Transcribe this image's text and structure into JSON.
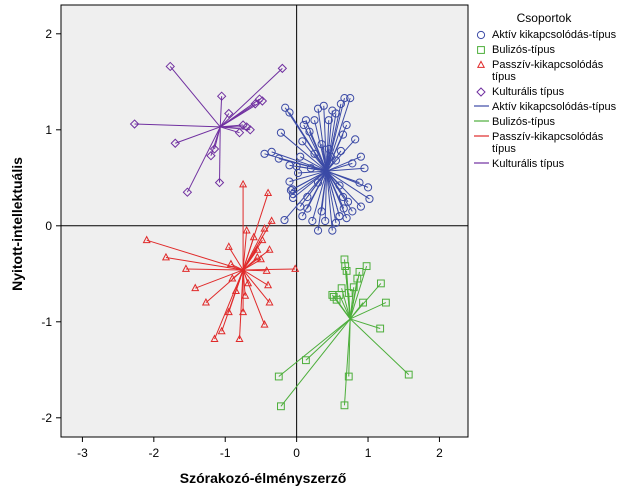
{
  "chart_data": {
    "type": "scatter",
    "xlabel": "Szórakozó-élményszerző",
    "ylabel": "Nyitott-intellektuális",
    "xlim": [
      -3.3,
      2.4
    ],
    "ylim": [
      -2.2,
      2.3
    ],
    "xticks": [
      -3,
      -2,
      -1,
      0,
      1,
      2
    ],
    "yticks": [
      -2,
      -1,
      0,
      1,
      2
    ],
    "reference_lines": {
      "x": 0,
      "y": 0
    },
    "legend": {
      "title": "Csoportok",
      "placement": "right",
      "marker_entries": [
        {
          "label": "Aktív kikapcsolódás-típus",
          "series": 0
        },
        {
          "label": "Bulizós-típus",
          "series": 1
        },
        {
          "label": "Passzív-kikapcsolódás típus",
          "series": 2
        },
        {
          "label": "Kulturális típus",
          "series": 3
        }
      ],
      "line_entries": [
        {
          "label": "Aktív kikapcsolódás-típus",
          "series": 0
        },
        {
          "label": "Bulizós-típus",
          "series": 1
        },
        {
          "label": "Passzív-kikapcsolódás típus",
          "series": 2
        },
        {
          "label": "Kulturális típus",
          "series": 3
        }
      ]
    },
    "series": [
      {
        "name": "Aktív kikapcsolódás-típus",
        "marker": "circle",
        "color": "#3b4aa6",
        "centroid": [
          0.42,
          0.57
        ],
        "points": [
          [
            -0.16,
            1.23
          ],
          [
            -0.1,
            1.18
          ],
          [
            -0.22,
            0.97
          ],
          [
            -0.35,
            0.77
          ],
          [
            -0.45,
            0.75
          ],
          [
            -0.25,
            0.7
          ],
          [
            -0.1,
            0.63
          ],
          [
            -0.1,
            0.46
          ],
          [
            -0.08,
            0.37
          ],
          [
            -0.05,
            0.29
          ],
          [
            -0.17,
            0.06
          ],
          [
            -0.06,
            0.38
          ],
          [
            0.02,
            0.55
          ],
          [
            0.05,
            0.72
          ],
          [
            0.08,
            0.88
          ],
          [
            0.1,
            1.05
          ],
          [
            0.13,
            1.1
          ],
          [
            0.18,
            0.98
          ],
          [
            0.25,
            1.1
          ],
          [
            0.3,
            1.22
          ],
          [
            0.38,
            1.25
          ],
          [
            0.45,
            1.1
          ],
          [
            0.5,
            1.2
          ],
          [
            0.55,
            1.17
          ],
          [
            0.62,
            1.27
          ],
          [
            0.67,
            1.33
          ],
          [
            0.75,
            1.33
          ],
          [
            0.7,
            1.05
          ],
          [
            0.65,
            0.95
          ],
          [
            0.78,
            0.65
          ],
          [
            0.9,
            0.72
          ],
          [
            0.95,
            0.6
          ],
          [
            0.88,
            0.45
          ],
          [
            1.0,
            0.4
          ],
          [
            1.02,
            0.28
          ],
          [
            0.9,
            0.2
          ],
          [
            0.78,
            0.15
          ],
          [
            0.7,
            0.08
          ],
          [
            0.6,
            0.1
          ],
          [
            0.55,
            0.03
          ],
          [
            0.5,
            -0.05
          ],
          [
            0.4,
            0.05
          ],
          [
            0.35,
            0.15
          ],
          [
            0.3,
            -0.05
          ],
          [
            0.22,
            0.05
          ],
          [
            0.15,
            0.18
          ],
          [
            0.08,
            0.1
          ],
          [
            0.05,
            0.2
          ],
          [
            0.0,
            0.62
          ],
          [
            -0.05,
            0.33
          ],
          [
            0.25,
            0.75
          ],
          [
            0.35,
            0.85
          ],
          [
            0.45,
            0.8
          ],
          [
            0.55,
            0.68
          ],
          [
            0.6,
            0.42
          ],
          [
            0.65,
            0.3
          ],
          [
            0.72,
            0.25
          ],
          [
            0.62,
            0.78
          ],
          [
            0.82,
            0.9
          ],
          [
            0.48,
            0.72
          ],
          [
            0.66,
            0.18
          ],
          [
            0.3,
            0.45
          ],
          [
            0.2,
            0.6
          ],
          [
            0.6,
            0.1
          ],
          [
            0.15,
            0.3
          ]
        ]
      },
      {
        "name": "Bulizós-típus",
        "marker": "square",
        "color": "#4cae3a",
        "centroid": [
          0.75,
          -0.97
        ],
        "points": [
          [
            0.67,
            -0.35
          ],
          [
            0.68,
            -0.42
          ],
          [
            0.7,
            -0.47
          ],
          [
            0.63,
            -0.65
          ],
          [
            0.5,
            -0.72
          ],
          [
            0.52,
            -0.74
          ],
          [
            0.56,
            -0.77
          ],
          [
            0.88,
            -0.48
          ],
          [
            0.85,
            -0.55
          ],
          [
            0.98,
            -0.42
          ],
          [
            1.18,
            -0.6
          ],
          [
            0.93,
            -0.8
          ],
          [
            1.25,
            -0.8
          ],
          [
            0.8,
            -0.64
          ],
          [
            1.17,
            -1.07
          ],
          [
            1.57,
            -1.55
          ],
          [
            0.73,
            -1.57
          ],
          [
            0.67,
            -1.87
          ],
          [
            0.6,
            -0.72
          ],
          [
            0.13,
            -1.4
          ],
          [
            -0.25,
            -1.57
          ],
          [
            -0.22,
            -1.88
          ],
          [
            0.73,
            -0.7
          ]
        ]
      },
      {
        "name": "Passzív-kikapcsolódás típus",
        "marker": "triangle",
        "color": "#e02a2a",
        "centroid": [
          -0.75,
          -0.46
        ],
        "points": [
          [
            -2.1,
            -0.15
          ],
          [
            -1.83,
            -0.33
          ],
          [
            -1.55,
            -0.45
          ],
          [
            -1.42,
            -0.65
          ],
          [
            -1.27,
            -0.8
          ],
          [
            -1.15,
            -1.18
          ],
          [
            -1.05,
            -1.1
          ],
          [
            -0.95,
            -0.9
          ],
          [
            -0.92,
            -0.4
          ],
          [
            -0.9,
            -0.55
          ],
          [
            -0.85,
            -0.68
          ],
          [
            -0.8,
            -1.18
          ],
          [
            -0.75,
            -0.9
          ],
          [
            -0.72,
            -0.73
          ],
          [
            -0.7,
            -0.05
          ],
          [
            -0.68,
            -0.6
          ],
          [
            -0.75,
            0.43
          ],
          [
            -0.6,
            -0.12
          ],
          [
            -0.55,
            -0.25
          ],
          [
            -0.5,
            -0.35
          ],
          [
            -0.48,
            -0.15
          ],
          [
            -0.45,
            -0.03
          ],
          [
            -0.42,
            -0.47
          ],
          [
            -0.4,
            -0.62
          ],
          [
            -0.38,
            -0.25
          ],
          [
            -0.35,
            0.05
          ],
          [
            -0.4,
            0.34
          ],
          [
            -0.55,
            -0.33
          ],
          [
            -0.45,
            -1.03
          ],
          [
            -0.38,
            -0.8
          ],
          [
            -0.02,
            -0.45
          ],
          [
            -0.95,
            -0.22
          ]
        ]
      },
      {
        "name": "Kulturális típus",
        "marker": "diamond",
        "color": "#7030a0",
        "centroid": [
          -1.07,
          1.03
        ],
        "points": [
          [
            -1.77,
            1.66
          ],
          [
            -1.05,
            1.35
          ],
          [
            -0.95,
            1.17
          ],
          [
            -0.75,
            1.05
          ],
          [
            -0.65,
            1.0
          ],
          [
            -0.58,
            1.27
          ],
          [
            -0.52,
            1.32
          ],
          [
            -0.48,
            1.3
          ],
          [
            -0.7,
            1.03
          ],
          [
            -0.8,
            0.97
          ],
          [
            -0.2,
            1.64
          ],
          [
            -2.27,
            1.06
          ],
          [
            -1.7,
            0.86
          ],
          [
            -1.2,
            0.73
          ],
          [
            -1.15,
            0.8
          ],
          [
            -1.08,
            0.45
          ],
          [
            -1.53,
            0.35
          ]
        ]
      }
    ]
  }
}
